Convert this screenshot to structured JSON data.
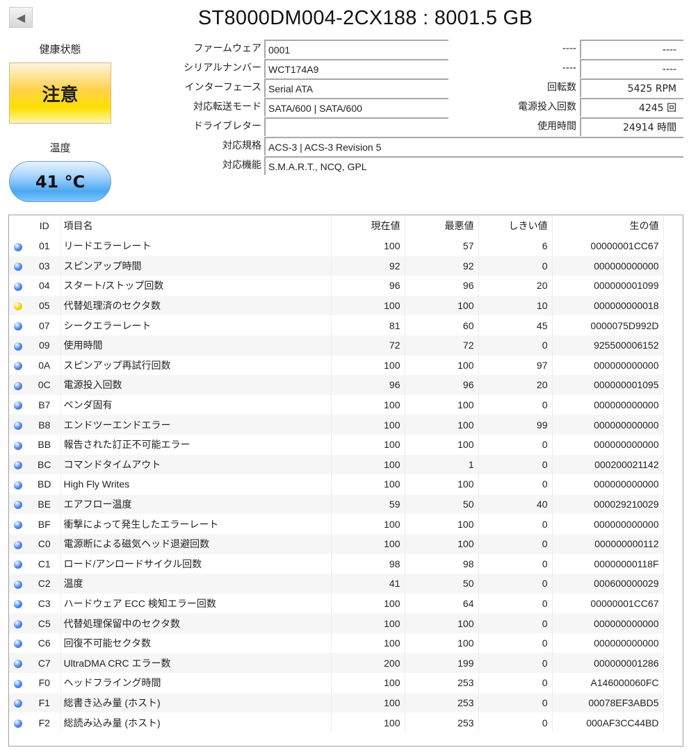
{
  "title": "ST8000DM004-2CX188 : 8001.5 GB",
  "left": {
    "health_label": "健康状態",
    "health_status": "注意",
    "temp_label": "温度",
    "temperature": "41 °C"
  },
  "info": [
    {
      "label": "ファームウェア",
      "value": "0001"
    },
    {
      "label": "シリアルナンバー",
      "value": "WCT174A9"
    },
    {
      "label": "インターフェース",
      "value": "Serial ATA"
    },
    {
      "label": "対応転送モード",
      "value": "SATA/600 | SATA/600"
    },
    {
      "label": "ドライブレター",
      "value": ""
    },
    {
      "label": "対応規格",
      "value": "ACS-3 | ACS-3 Revision 5"
    },
    {
      "label": "対応機能",
      "value": "S.M.A.R.T., NCQ, GPL"
    }
  ],
  "right": [
    {
      "label": "----",
      "value": "----"
    },
    {
      "label": "----",
      "value": "----"
    },
    {
      "label": "回転数",
      "value": "5425 RPM"
    },
    {
      "label": "電源投入回数",
      "value": "4245 回"
    },
    {
      "label": "使用時間",
      "value": "24914 時間"
    }
  ],
  "colors": {
    "good": "#4a7ef0",
    "caution": "#f0d000"
  },
  "table": {
    "headers": [
      "ID",
      "項目名",
      "現在値",
      "最悪値",
      "しきい値",
      "生の値"
    ],
    "rows": [
      {
        "status": "good",
        "id": "01",
        "name": "リードエラーレート",
        "cur": "100",
        "worst": "57",
        "thr": "6",
        "raw": "00000001CC67"
      },
      {
        "status": "good",
        "id": "03",
        "name": "スピンアップ時間",
        "cur": "92",
        "worst": "92",
        "thr": "0",
        "raw": "000000000000"
      },
      {
        "status": "good",
        "id": "04",
        "name": "スタート/ストップ回数",
        "cur": "96",
        "worst": "96",
        "thr": "20",
        "raw": "000000001099"
      },
      {
        "status": "caution",
        "id": "05",
        "name": "代替処理済のセクタ数",
        "cur": "100",
        "worst": "100",
        "thr": "10",
        "raw": "000000000018"
      },
      {
        "status": "good",
        "id": "07",
        "name": "シークエラーレート",
        "cur": "81",
        "worst": "60",
        "thr": "45",
        "raw": "0000075D992D"
      },
      {
        "status": "good",
        "id": "09",
        "name": "使用時間",
        "cur": "72",
        "worst": "72",
        "thr": "0",
        "raw": "925500006152"
      },
      {
        "status": "good",
        "id": "0A",
        "name": "スピンアップ再試行回数",
        "cur": "100",
        "worst": "100",
        "thr": "97",
        "raw": "000000000000"
      },
      {
        "status": "good",
        "id": "0C",
        "name": "電源投入回数",
        "cur": "96",
        "worst": "96",
        "thr": "20",
        "raw": "000000001095"
      },
      {
        "status": "good",
        "id": "B7",
        "name": "ベンダ固有",
        "cur": "100",
        "worst": "100",
        "thr": "0",
        "raw": "000000000000"
      },
      {
        "status": "good",
        "id": "B8",
        "name": "エンドツーエンドエラー",
        "cur": "100",
        "worst": "100",
        "thr": "99",
        "raw": "000000000000"
      },
      {
        "status": "good",
        "id": "BB",
        "name": "報告された訂正不可能エラー",
        "cur": "100",
        "worst": "100",
        "thr": "0",
        "raw": "000000000000"
      },
      {
        "status": "good",
        "id": "BC",
        "name": "コマンドタイムアウト",
        "cur": "100",
        "worst": "1",
        "thr": "0",
        "raw": "000200021142"
      },
      {
        "status": "good",
        "id": "BD",
        "name": "High Fly Writes",
        "cur": "100",
        "worst": "100",
        "thr": "0",
        "raw": "000000000000"
      },
      {
        "status": "good",
        "id": "BE",
        "name": "エアフロー温度",
        "cur": "59",
        "worst": "50",
        "thr": "40",
        "raw": "000029210029"
      },
      {
        "status": "good",
        "id": "BF",
        "name": "衝撃によって発生したエラーレート",
        "cur": "100",
        "worst": "100",
        "thr": "0",
        "raw": "000000000000"
      },
      {
        "status": "good",
        "id": "C0",
        "name": "電源断による磁気ヘッド退避回数",
        "cur": "100",
        "worst": "100",
        "thr": "0",
        "raw": "000000000112"
      },
      {
        "status": "good",
        "id": "C1",
        "name": "ロード/アンロードサイクル回数",
        "cur": "98",
        "worst": "98",
        "thr": "0",
        "raw": "00000000118F"
      },
      {
        "status": "good",
        "id": "C2",
        "name": "温度",
        "cur": "41",
        "worst": "50",
        "thr": "0",
        "raw": "000600000029"
      },
      {
        "status": "good",
        "id": "C3",
        "name": "ハードウェア ECC 検知エラー回数",
        "cur": "100",
        "worst": "64",
        "thr": "0",
        "raw": "00000001CC67"
      },
      {
        "status": "good",
        "id": "C5",
        "name": "代替処理保留中のセクタ数",
        "cur": "100",
        "worst": "100",
        "thr": "0",
        "raw": "000000000000"
      },
      {
        "status": "good",
        "id": "C6",
        "name": "回復不可能セクタ数",
        "cur": "100",
        "worst": "100",
        "thr": "0",
        "raw": "000000000000"
      },
      {
        "status": "good",
        "id": "C7",
        "name": "UltraDMA CRC エラー数",
        "cur": "200",
        "worst": "199",
        "thr": "0",
        "raw": "000000001286"
      },
      {
        "status": "good",
        "id": "F0",
        "name": "ヘッドフライング時間",
        "cur": "100",
        "worst": "253",
        "thr": "0",
        "raw": "A146000060FC"
      },
      {
        "status": "good",
        "id": "F1",
        "name": "総書き込み量 (ホスト)",
        "cur": "100",
        "worst": "253",
        "thr": "0",
        "raw": "00078EF3ABD5"
      },
      {
        "status": "good",
        "id": "F2",
        "name": "総読み込み量 (ホスト)",
        "cur": "100",
        "worst": "253",
        "thr": "0",
        "raw": "000AF3CC44BD"
      }
    ]
  }
}
